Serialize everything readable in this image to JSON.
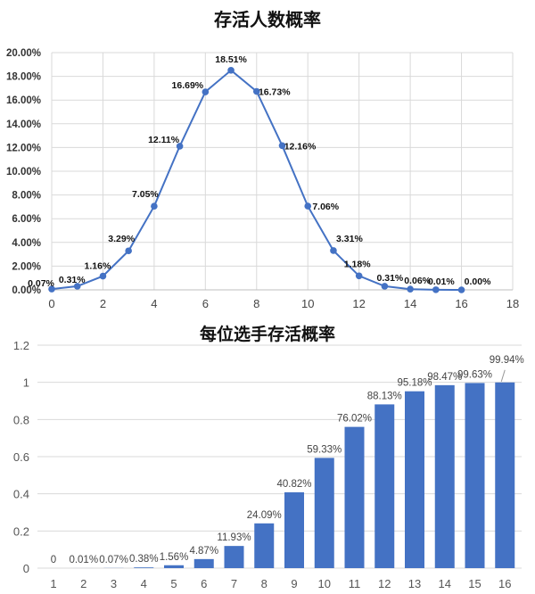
{
  "chart_data": [
    {
      "type": "line",
      "title": "存活人数概率",
      "xlabel": "",
      "ylabel": "",
      "x": [
        0,
        1,
        2,
        3,
        4,
        5,
        6,
        7,
        8,
        9,
        10,
        11,
        12,
        13,
        14,
        15,
        16
      ],
      "values": [
        0.07,
        0.31,
        1.16,
        3.29,
        7.05,
        12.11,
        16.69,
        18.51,
        16.73,
        12.16,
        7.06,
        3.31,
        1.18,
        0.31,
        0.06,
        0.01,
        0.0
      ],
      "labels": [
        "0.07%",
        "0.31%",
        "1.16%",
        "3.29%",
        "7.05%",
        "12.11%",
        "16.69%",
        "18.51%",
        "16.73%",
        "12.16%",
        "7.06%",
        "3.31%",
        "1.18%",
        "0.31%",
        "0.06%",
        "0.01%",
        "0.00%"
      ],
      "xticks": [
        "0",
        "2",
        "4",
        "6",
        "8",
        "10",
        "12",
        "14",
        "16",
        "18"
      ],
      "yticks": [
        "0.00%",
        "2.00%",
        "4.00%",
        "6.00%",
        "8.00%",
        "10.00%",
        "12.00%",
        "14.00%",
        "16.00%",
        "18.00%",
        "20.00%"
      ],
      "xlim": [
        0,
        18
      ],
      "ylim": [
        0,
        20
      ],
      "grid": true,
      "color": "#4472c4"
    },
    {
      "type": "bar",
      "title": "每位选手存活概率",
      "xlabel": "",
      "ylabel": "",
      "categories": [
        "1",
        "2",
        "3",
        "4",
        "5",
        "6",
        "7",
        "8",
        "9",
        "10",
        "11",
        "12",
        "13",
        "14",
        "15",
        "16"
      ],
      "values": [
        0,
        0.0001,
        0.0007,
        0.0038,
        0.0156,
        0.0487,
        0.1193,
        0.2409,
        0.4082,
        0.5933,
        0.7602,
        0.8813,
        0.9518,
        0.9847,
        0.9963,
        0.9994
      ],
      "labels": [
        "0",
        "0.01%",
        "0.07%",
        "0.38%",
        "1.56%",
        "4.87%",
        "11.93%",
        "24.09%",
        "40.82%",
        "59.33%",
        "76.02%",
        "88.13%",
        "95.18%",
        "98.47%",
        "99.63%",
        "99.94%"
      ],
      "yticks": [
        "0",
        "0.2",
        "0.4",
        "0.6",
        "0.8",
        "1",
        "1.2"
      ],
      "ylim": [
        0,
        1.2
      ],
      "grid": true,
      "color": "#4472c4"
    }
  ]
}
